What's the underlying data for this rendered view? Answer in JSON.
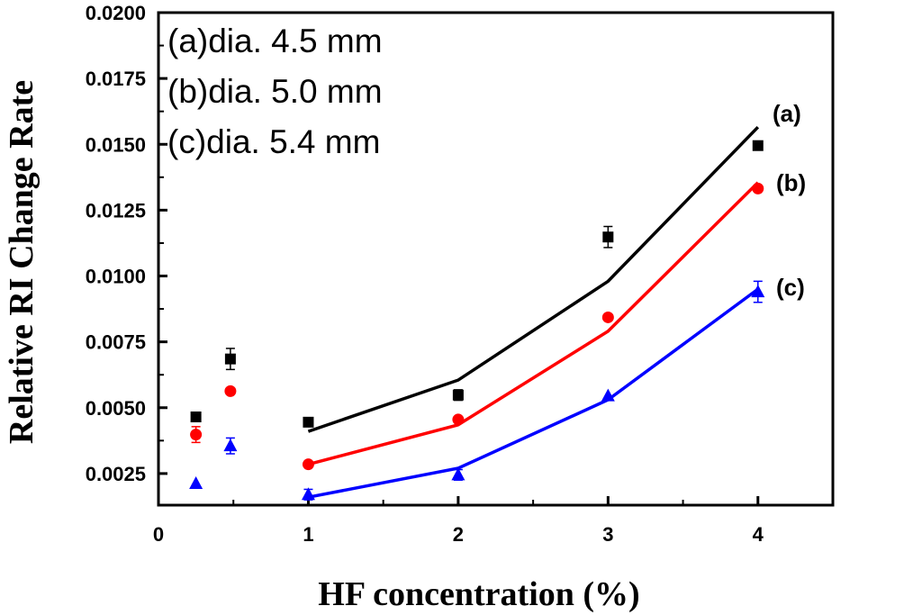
{
  "chart_data": {
    "type": "scatter",
    "xlabel": "HF concentration (%)",
    "ylabel": "Relative RI Change Rate",
    "xlim": [
      0,
      4.5
    ],
    "ylim": [
      0.0013,
      0.02
    ],
    "x_ticks": [
      {
        "value": 0,
        "label": "0"
      },
      {
        "value": 1,
        "label": "1"
      },
      {
        "value": 2,
        "label": "2"
      },
      {
        "value": 3,
        "label": "3"
      },
      {
        "value": 4,
        "label": "4"
      }
    ],
    "x_minor_ticks": [
      0.5,
      1.5,
      2.5,
      3.5
    ],
    "y_ticks": [
      {
        "value": 0.0025,
        "label": "0.0025"
      },
      {
        "value": 0.005,
        "label": "0.0050"
      },
      {
        "value": 0.0075,
        "label": "0.0075"
      },
      {
        "value": 0.01,
        "label": "0.0100"
      },
      {
        "value": 0.0125,
        "label": "0.0125"
      },
      {
        "value": 0.015,
        "label": "0.0150"
      },
      {
        "value": 0.0175,
        "label": "0.0175"
      },
      {
        "value": 0.02,
        "label": "0.0200"
      }
    ],
    "legend": [
      "(a)dia. 4.5 mm",
      "(b)dia. 5.0 mm",
      "(c)dia. 5.4 mm"
    ],
    "series": [
      {
        "name": "(a)dia. 4.5 mm",
        "label": "(a)",
        "color": "#000000",
        "marker": "square",
        "points": [
          {
            "x": 0.25,
            "y": 0.00465,
            "err": 0.0
          },
          {
            "x": 0.48,
            "y": 0.00685,
            "err": 0.0004
          },
          {
            "x": 1.0,
            "y": 0.00445,
            "err": 0.0
          },
          {
            "x": 2.0,
            "y": 0.00548,
            "err": 0.0002
          },
          {
            "x": 3.0,
            "y": 0.01148,
            "err": 0.0004
          },
          {
            "x": 4.0,
            "y": 0.01495,
            "err": 0.0
          }
        ],
        "fit": [
          {
            "x": 1.0,
            "y": 0.0041
          },
          {
            "x": 2.0,
            "y": 0.00605
          },
          {
            "x": 3.0,
            "y": 0.0098
          },
          {
            "x": 4.0,
            "y": 0.01565
          }
        ]
      },
      {
        "name": "(b)dia. 5.0 mm",
        "label": "(b)",
        "color": "#ff0000",
        "marker": "circle",
        "points": [
          {
            "x": 0.25,
            "y": 0.00398,
            "err": 0.0003
          },
          {
            "x": 0.48,
            "y": 0.00563,
            "err": 0.0
          },
          {
            "x": 1.0,
            "y": 0.00285,
            "err": 0.0
          },
          {
            "x": 2.0,
            "y": 0.00455,
            "err": 0.0
          },
          {
            "x": 3.0,
            "y": 0.00843,
            "err": 0.0
          },
          {
            "x": 4.0,
            "y": 0.01332,
            "err": 0.0
          }
        ],
        "fit": [
          {
            "x": 1.0,
            "y": 0.00285
          },
          {
            "x": 2.0,
            "y": 0.00435
          },
          {
            "x": 3.0,
            "y": 0.0079
          },
          {
            "x": 4.0,
            "y": 0.01355
          }
        ]
      },
      {
        "name": "(c)dia. 5.4 mm",
        "label": "(c)",
        "color": "#0000ff",
        "marker": "triangle",
        "points": [
          {
            "x": 0.25,
            "y": 0.00212,
            "err": 0.0
          },
          {
            "x": 0.48,
            "y": 0.00355,
            "err": 0.0003
          },
          {
            "x": 1.0,
            "y": 0.0017,
            "err": 0.0002
          },
          {
            "x": 2.0,
            "y": 0.00245,
            "err": 0.0002
          },
          {
            "x": 3.0,
            "y": 0.00545,
            "err": 0.0
          },
          {
            "x": 4.0,
            "y": 0.0094,
            "err": 0.0004
          }
        ],
        "fit": [
          {
            "x": 1.0,
            "y": 0.0016
          },
          {
            "x": 2.0,
            "y": 0.0027
          },
          {
            "x": 3.0,
            "y": 0.0053
          },
          {
            "x": 4.0,
            "y": 0.0095
          }
        ]
      }
    ]
  }
}
